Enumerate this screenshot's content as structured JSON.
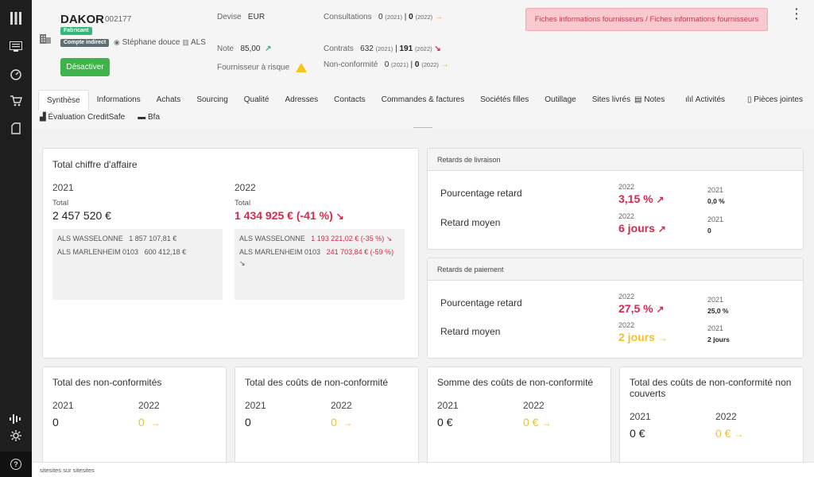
{
  "rail": {
    "icons": [
      "columns-icon",
      "monitor-icon",
      "gauge-icon",
      "cart-icon",
      "document-icon",
      "activity-icon",
      "settings-icon",
      "help-icon"
    ]
  },
  "supplier": {
    "name": "DAKOR",
    "code": "002177",
    "badge_type": "Fabricant",
    "badge_account": "Compte indirect",
    "owner": "Stéphane douce",
    "site": "ALS",
    "deactivate_label": "Désactiver"
  },
  "header": {
    "devise_label": "Devise",
    "devise_value": "EUR",
    "note_label": "Note",
    "note_value": "85,00",
    "risk_label": "Fournisseur à risque",
    "consultations_label": "Consultations",
    "consultations_2021": "0",
    "consultations_2021_year": "(2021)",
    "consultations_2022": "0",
    "consultations_2022_year": "(2022)",
    "contrats_label": "Contrats",
    "contrats_2021": "632",
    "contrats_2021_year": "(2021)",
    "contrats_2022": "191",
    "contrats_2022_year": "(2022)",
    "nc_label": "Non-conformité",
    "nc_2021": "0",
    "nc_2021_year": "(2021)",
    "nc_2022": "0",
    "nc_2022_year": "(2022)",
    "sep": "|",
    "alert": "Fiches informations fournisseurs / Fiches informations fournisseurs",
    "colors": {
      "green": "#35b779",
      "red": "#d9274f",
      "orange": "#f0a02a"
    }
  },
  "tabs": [
    "Synthèse",
    "Informations",
    "Achats",
    "Sourcing",
    "Qualité",
    "Adresses",
    "Contacts",
    "Commandes & factures",
    "Sociétés filles",
    "Outillage",
    "Sites livrés"
  ],
  "tabs_right": {
    "notes": "Notes",
    "activites": "Activités",
    "pieces": "Pièces jointes"
  },
  "tabs2": {
    "creditsafe": "Évaluation CreditSafe",
    "bfa": "Bfa"
  },
  "ca": {
    "title": "Total chiffre d'affaire",
    "y1": "2021",
    "y2": "2022",
    "total_label": "Total",
    "total_2021": "2 457 520 €",
    "total_2022": "1 434 925 € (-41 %)",
    "sites_2021": [
      {
        "name": "ALS WASSELONNE",
        "value": "1 857 107,81 €"
      },
      {
        "name": "ALS MARLENHEIM 0103",
        "value": "600 412,18 €"
      }
    ],
    "sites_2022": [
      {
        "name": "ALS WASSELONNE",
        "value": "1 193 221,02 € (-35 %)"
      },
      {
        "name": "ALS MARLENHEIM 0103",
        "value": "241 703,84 € (-59 %)"
      }
    ]
  },
  "livraison": {
    "title": "Retards de livraison",
    "pct_label": "Pourcentage retard",
    "moy_label": "Retard moyen",
    "y_2022": "2022",
    "y_2021": "2021",
    "pct_2022": "3,15 %",
    "pct_2021": "0,0 %",
    "moy_2022": "6 jours",
    "moy_2021": "0"
  },
  "paiement": {
    "title": "Retards de paiement",
    "pct_label": "Pourcentage retard",
    "moy_label": "Retard moyen",
    "y_2022": "2022",
    "y_2021": "2021",
    "pct_2022": "27,5 %",
    "pct_2021": "25,0 %",
    "moy_2022": "2 jours",
    "moy_2021": "2 jours"
  },
  "bottom": [
    {
      "title": "Total des non-conformités",
      "y1": "2021",
      "y2": "2022",
      "v1": "0",
      "v2": "0"
    },
    {
      "title": "Total des coûts de non-conformité",
      "y1": "2021",
      "y2": "2022",
      "v1": "0",
      "v2": "0"
    },
    {
      "title": "Somme des coûts de non-conformité",
      "y1": "2021",
      "y2": "2022",
      "v1": "0 €",
      "v2": "0 €"
    },
    {
      "title": "Total des coûts de non-conformité non couverts",
      "y1": "2021",
      "y2": "2022",
      "v1": "0 €",
      "v2": "0 €"
    }
  ],
  "footer": "sitesites sur sitesites"
}
